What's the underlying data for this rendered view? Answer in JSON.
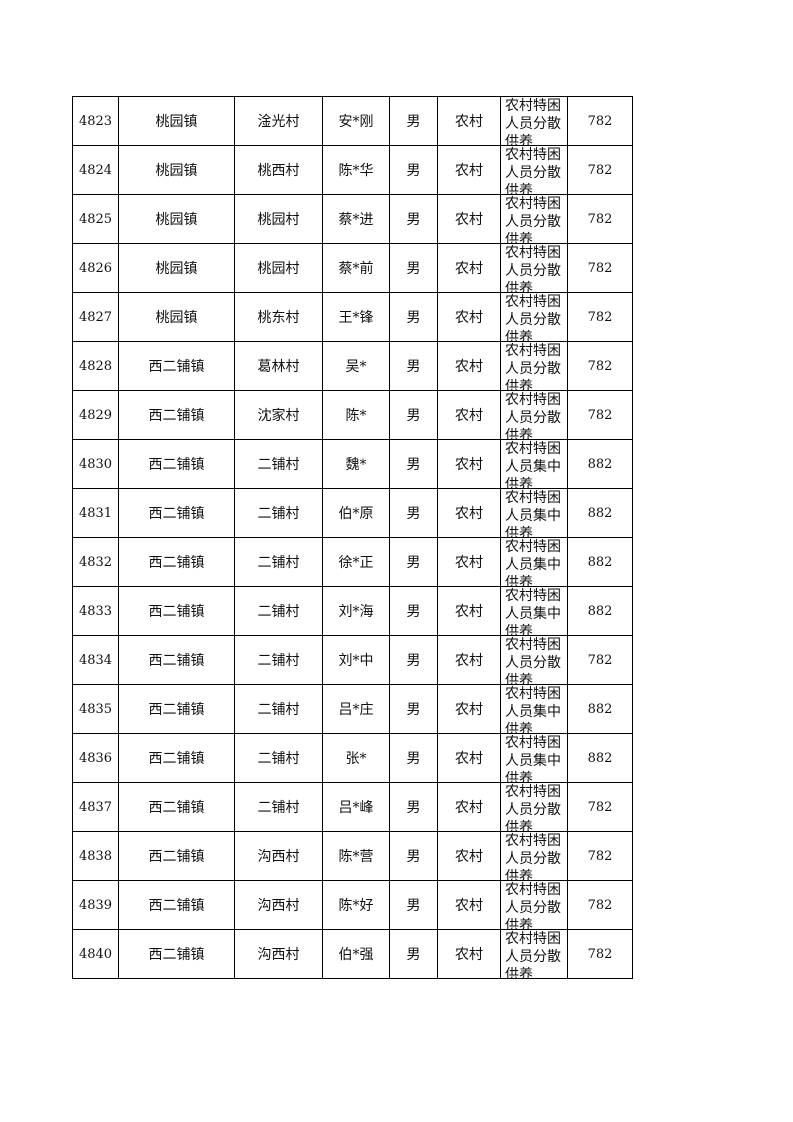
{
  "table": {
    "rows": [
      [
        "4823",
        "桃园镇",
        "淦光村",
        "安*刚",
        "男",
        "农村",
        "农村特困人员分散供养",
        782
      ],
      [
        "4824",
        "桃园镇",
        "桃西村",
        "陈*华",
        "男",
        "农村",
        "农村特困人员分散供养",
        782
      ],
      [
        "4825",
        "桃园镇",
        "桃园村",
        "蔡*进",
        "男",
        "农村",
        "农村特困人员分散供养",
        782
      ],
      [
        "4826",
        "桃园镇",
        "桃园村",
        "蔡*前",
        "男",
        "农村",
        "农村特困人员分散供养",
        782
      ],
      [
        "4827",
        "桃园镇",
        "桃东村",
        "王*锋",
        "男",
        "农村",
        "农村特困人员分散供养",
        782
      ],
      [
        "4828",
        "西二铺镇",
        "葛林村",
        "吴*",
        "男",
        "农村",
        "农村特困人员分散供养",
        782
      ],
      [
        "4829",
        "西二铺镇",
        "沈家村",
        "陈*",
        "男",
        "农村",
        "农村特困人员分散供养",
        782
      ],
      [
        "4830",
        "西二铺镇",
        "二铺村",
        "魏*",
        "男",
        "农村",
        "农村特困人员集中供养",
        882
      ],
      [
        "4831",
        "西二铺镇",
        "二铺村",
        "伯*原",
        "男",
        "农村",
        "农村特困人员集中供养",
        882
      ],
      [
        "4832",
        "西二铺镇",
        "二铺村",
        "徐*正",
        "男",
        "农村",
        "农村特困人员集中供养",
        882
      ],
      [
        "4833",
        "西二铺镇",
        "二铺村",
        "刘*海",
        "男",
        "农村",
        "农村特困人员集中供养",
        882
      ],
      [
        "4834",
        "西二铺镇",
        "二铺村",
        "刘*中",
        "男",
        "农村",
        "农村特困人员分散供养",
        782
      ],
      [
        "4835",
        "西二铺镇",
        "二铺村",
        "吕*庄",
        "男",
        "农村",
        "农村特困人员集中供养",
        882
      ],
      [
        "4836",
        "西二铺镇",
        "二铺村",
        "张*",
        "男",
        "农村",
        "农村特困人员集中供养",
        882
      ],
      [
        "4837",
        "西二铺镇",
        "二铺村",
        "吕*峰",
        "男",
        "农村",
        "农村特困人员分散供养",
        782
      ],
      [
        "4838",
        "西二铺镇",
        "沟西村",
        "陈*营",
        "男",
        "农村",
        "农村特困人员分散供养",
        782
      ],
      [
        "4839",
        "西二铺镇",
        "沟西村",
        "陈*好",
        "男",
        "农村",
        "农村特困人员分散供养",
        782
      ],
      [
        "4840",
        "西二铺镇",
        "沟西村",
        "伯*强",
        "男",
        "农村",
        "农村特困人员分散供养",
        782
      ]
    ]
  }
}
